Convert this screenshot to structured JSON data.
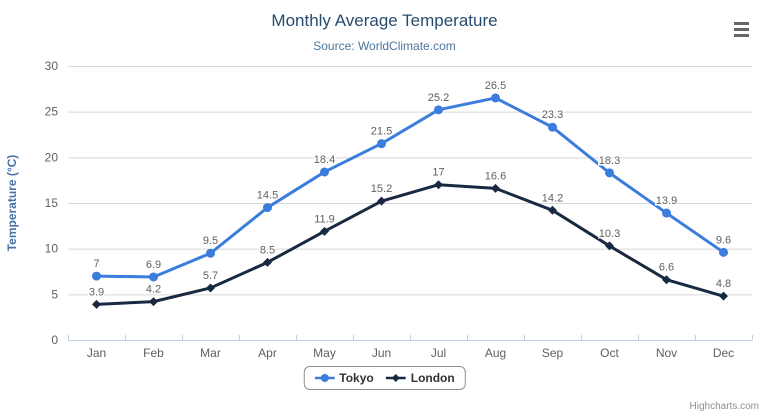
{
  "title": "Monthly Average Temperature",
  "subtitle": "Source: WorldClimate.com",
  "credits": "Highcharts.com",
  "menu_icon": "hamburger-menu-icon",
  "colors": {
    "background": "#ffffff",
    "title": "#274b6d",
    "subtitle": "#4d759e",
    "axis_title": "#4572a7",
    "axis_labels": "#606060",
    "data_labels": "#606060",
    "gridline": "#d8d8d8",
    "axis_line": "#c0d0e0",
    "legend_border": "#909090",
    "legend_text": "#333333",
    "credits_text": "#909090",
    "menu_icon_color": "#666666",
    "tokyo": "#3b7ddd",
    "london": "#1a2942"
  },
  "chart_data": {
    "type": "line",
    "title": "Monthly Average Temperature",
    "subtitle": "Source: WorldClimate.com",
    "xlabel": "",
    "ylabel": "Temperature (°C)",
    "ylim": [
      0,
      30
    ],
    "ytick_interval": 5,
    "grid": "horizontal-only",
    "legend_position": "bottom-center",
    "data_labels": true,
    "categories": [
      "Jan",
      "Feb",
      "Mar",
      "Apr",
      "May",
      "Jun",
      "Jul",
      "Aug",
      "Sep",
      "Oct",
      "Nov",
      "Dec"
    ],
    "series": [
      {
        "name": "Tokyo",
        "color": "#3b7ddd",
        "marker": "circle",
        "values": [
          7,
          6.9,
          9.5,
          14.5,
          18.4,
          21.5,
          25.2,
          26.5,
          23.3,
          18.3,
          13.9,
          9.6
        ]
      },
      {
        "name": "London",
        "color": "#1a2942",
        "marker": "diamond",
        "values": [
          3.9,
          4.2,
          5.7,
          8.5,
          11.9,
          15.2,
          17,
          16.6,
          14.2,
          10.3,
          6.6,
          4.8
        ]
      }
    ]
  }
}
